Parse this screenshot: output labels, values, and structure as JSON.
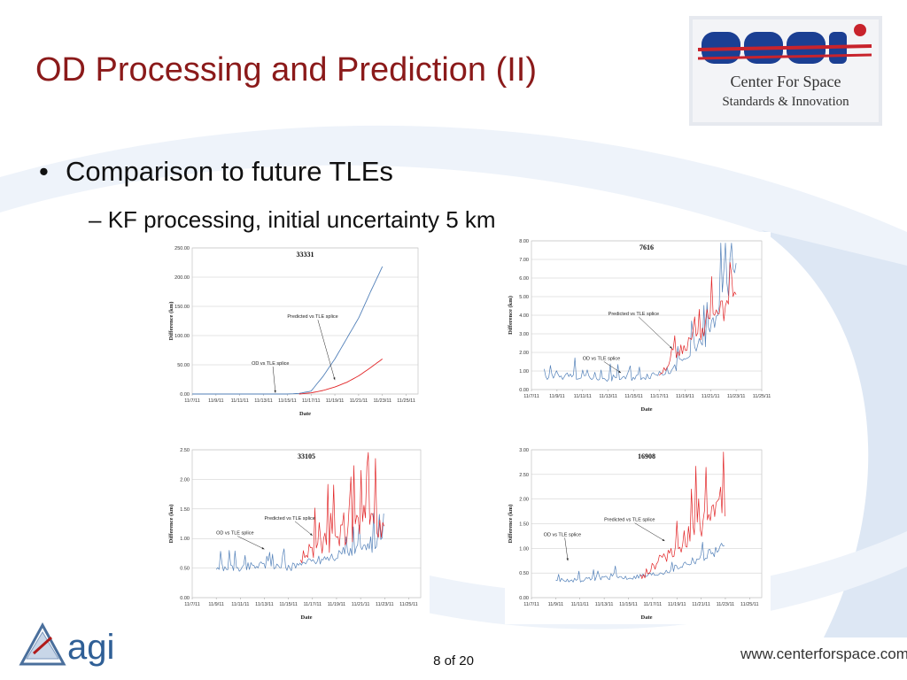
{
  "slide": {
    "title": "OD Processing and Prediction (II)",
    "bullet_main": "Comparison to future TLEs",
    "bullet_sub": "KF processing, initial uncertainty 5 km",
    "bullet_marker": "•",
    "sub_marker": "–",
    "page_number": "8 of 20",
    "website": "www.centerforspace.com"
  },
  "logos": {
    "cssi_text": "CSSI",
    "cssi_line1": "Center For Space",
    "cssi_line2": "Standards & Innovation",
    "agi_text": "agi"
  },
  "colors": {
    "title": "#8b1a1a",
    "od_series": "#4a7ab5",
    "predicted_series": "#e0191b",
    "cssi_blue": "#1b3f93",
    "cssi_red": "#c8232c",
    "swoosh": "#dde7f4"
  },
  "chart_data": [
    {
      "id": "33331",
      "type": "line",
      "title": "33331",
      "xlabel": "Date",
      "ylabel": "Difference (km)",
      "xlim": [
        "11/7/11",
        "11/26/11"
      ],
      "ylim": [
        0,
        250
      ],
      "yticks": [
        "0.00",
        "50.00",
        "100.00",
        "150.00",
        "200.00",
        "250.00"
      ],
      "xticks": [
        "11/7/11",
        "11/9/11",
        "11/11/11",
        "11/13/11",
        "11/15/11",
        "11/17/11",
        "11/19/11",
        "11/21/11",
        "11/23/11",
        "11/25/11"
      ],
      "grid": true,
      "series": [
        {
          "color": "#4a7ab5",
          "noise": 0,
          "x": [
            "11/7/11",
            "11/15/11",
            "11/16/11",
            "11/17/11",
            "11/18/11",
            "11/19/11",
            "11/20/11",
            "11/21/11",
            "11/22/11",
            "11/23/11"
          ],
          "y": [
            0,
            0,
            1,
            5,
            30,
            60,
            95,
            130,
            175,
            218
          ]
        },
        {
          "color": "#e0191b",
          "noise": 0,
          "x": [
            "11/16/11",
            "11/17/11",
            "11/18/11",
            "11/19/11",
            "11/20/11",
            "11/21/11",
            "11/22/11",
            "11/23/11"
          ],
          "y": [
            0,
            2,
            6,
            12,
            20,
            31,
            45,
            60
          ]
        }
      ],
      "annotations": [
        {
          "text": "Predicted vs TLE splice",
          "label_x": "11/15/11",
          "label_y": 130,
          "arrow_x": "11/19/11",
          "arrow_y": 24
        },
        {
          "text": "OD vs TLE splice",
          "label_x": "11/12/11",
          "label_y": 50,
          "arrow_x": "11/14/11",
          "arrow_y": 2
        }
      ]
    },
    {
      "id": "7616",
      "type": "line",
      "title": "7616",
      "xlabel": "Date",
      "ylabel": "Difference (km)",
      "xlim": [
        "11/7/11",
        "11/25/11"
      ],
      "ylim": [
        0,
        8
      ],
      "yticks": [
        "0.00",
        "1.00",
        "2.00",
        "3.00",
        "4.00",
        "5.00",
        "6.00",
        "7.00",
        "8.00"
      ],
      "xticks": [
        "11/7/11",
        "11/9/11",
        "11/11/11",
        "11/13/11",
        "11/15/11",
        "11/17/11",
        "11/19/11",
        "11/21/11",
        "11/23/11",
        "11/25/11"
      ],
      "grid": true,
      "series": [
        {
          "color": "#4a7ab5",
          "noise": 0.75,
          "x": [
            "11/8/11",
            "11/10/11",
            "11/12/11",
            "11/14/11",
            "11/16/11",
            "11/18/11",
            "11/19/11",
            "11/20/11",
            "11/21/11",
            "11/22/11",
            "11/23/11"
          ],
          "y": [
            0.6,
            0.7,
            0.6,
            0.6,
            0.7,
            1.0,
            1.5,
            2.2,
            3.0,
            5.2,
            6.8
          ]
        },
        {
          "color": "#e0191b",
          "noise": 0.55,
          "x": [
            "11/17/11",
            "11/18/11",
            "11/19/11",
            "11/20/11",
            "11/21/11",
            "11/22/11",
            "11/23/11"
          ],
          "y": [
            0.8,
            1.5,
            2.3,
            2.8,
            3.5,
            4.0,
            5.0
          ]
        }
      ],
      "annotations": [
        {
          "text": "Predicted vs TLE splice",
          "label_x": "11/13/11",
          "label_y": 4.0,
          "arrow_x": "11/18/11",
          "arrow_y": 2.2
        },
        {
          "text": "OD vs TLE splice",
          "label_x": "11/11/11",
          "label_y": 1.6,
          "arrow_x": "11/14/11",
          "arrow_y": 0.9
        }
      ]
    },
    {
      "id": "33105",
      "type": "line",
      "title": "33105",
      "xlabel": "Date",
      "ylabel": "Difference (km)",
      "xlim": [
        "11/7/11",
        "11/26/11"
      ],
      "ylim": [
        0,
        2.5
      ],
      "yticks": [
        "0.00",
        "0.50",
        "1.00",
        "1.50",
        "2.00",
        "2.50"
      ],
      "xticks": [
        "11/7/11",
        "11/9/11",
        "11/11/11",
        "11/13/11",
        "11/15/11",
        "11/17/11",
        "11/19/11",
        "11/21/11",
        "11/23/11",
        "11/25/11"
      ],
      "grid": true,
      "series": [
        {
          "color": "#4a7ab5",
          "noise": 0.5,
          "x": [
            "11/9/11",
            "11/11/11",
            "11/13/11",
            "11/15/11",
            "11/17/11",
            "11/19/11",
            "11/21/11",
            "11/23/11"
          ],
          "y": [
            0.5,
            0.5,
            0.55,
            0.5,
            0.6,
            0.7,
            0.8,
            0.9
          ]
        },
        {
          "color": "#e0191b",
          "noise": 0.85,
          "x": [
            "11/16/11",
            "11/17/11",
            "11/18/11",
            "11/19/11",
            "11/20/11",
            "11/21/11",
            "11/22/11",
            "11/23/11"
          ],
          "y": [
            0.6,
            0.8,
            0.9,
            1.0,
            1.1,
            1.2,
            1.2,
            1.2
          ]
        }
      ],
      "annotations": [
        {
          "text": "Predicted vs TLE splice",
          "label_x": "11/13/11",
          "label_y": 1.32,
          "arrow_x": "11/17/11",
          "arrow_y": 1.05
        },
        {
          "text": "OD vs TLE splice",
          "label_x": "11/9/11",
          "label_y": 1.07,
          "arrow_x": "11/13/11",
          "arrow_y": 0.82
        }
      ]
    },
    {
      "id": "16908",
      "type": "line",
      "title": "16908",
      "xlabel": "Date",
      "ylabel": "Difference (km)",
      "xlim": [
        "11/7/11",
        "11/26/11"
      ],
      "ylim": [
        0,
        3
      ],
      "yticks": [
        "0.00",
        "0.50",
        "1.00",
        "1.50",
        "2.00",
        "2.50",
        "3.00"
      ],
      "xticks": [
        "11/7/11",
        "11/9/11",
        "11/11/11",
        "11/13/11",
        "11/15/11",
        "11/17/11",
        "11/19/11",
        "11/21/11",
        "11/23/11",
        "11/25/11"
      ],
      "grid": true,
      "series": [
        {
          "color": "#4a7ab5",
          "noise": 0.45,
          "x": [
            "11/9/11",
            "11/11/11",
            "11/13/11",
            "11/15/11",
            "11/17/11",
            "11/19/11",
            "11/21/11",
            "11/23/11"
          ],
          "y": [
            0.35,
            0.35,
            0.4,
            0.4,
            0.45,
            0.6,
            0.8,
            1.0
          ]
        },
        {
          "color": "#e0191b",
          "noise": 0.75,
          "x": [
            "11/16/11",
            "11/17/11",
            "11/18/11",
            "11/19/11",
            "11/20/11",
            "11/21/11",
            "11/22/11",
            "11/23/11"
          ],
          "y": [
            0.4,
            0.6,
            0.8,
            1.0,
            1.2,
            1.4,
            1.6,
            1.8
          ]
        }
      ],
      "annotations": [
        {
          "text": "Predicted vs TLE splice",
          "label_x": "11/13/11",
          "label_y": 1.55,
          "arrow_x": "11/18/11",
          "arrow_y": 1.15
        },
        {
          "text": "OD vs TLE splice",
          "label_x": "11/8/11",
          "label_y": 1.25,
          "arrow_x": "11/10/11",
          "arrow_y": 0.75
        }
      ]
    }
  ]
}
